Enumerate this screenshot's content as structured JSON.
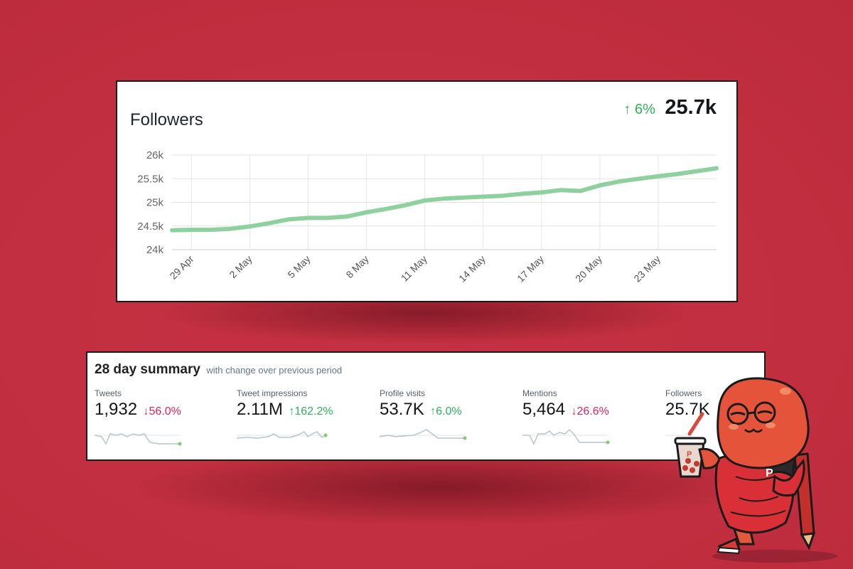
{
  "followers_card": {
    "title": "Followers",
    "change_arrow": "↑",
    "change": "6%",
    "value": "25.7k",
    "line_color": "#8fd19e",
    "up_color": "#2eb15b"
  },
  "chart_data": {
    "type": "line",
    "title": "Followers",
    "x_tick_labels": [
      "29 Apr",
      "2 May",
      "5 May",
      "8 May",
      "11 May",
      "14 May",
      "17 May",
      "20 May",
      "23 May"
    ],
    "y_tick_labels": [
      "24k",
      "24.5k",
      "25k",
      "25.5k",
      "26k"
    ],
    "ylim": [
      24000,
      26000
    ],
    "grid": true,
    "series": [
      {
        "x": [
          "2019-04-28",
          "2019-04-29",
          "2019-04-30",
          "2019-05-01",
          "2019-05-02",
          "2019-05-03",
          "2019-05-04",
          "2019-05-05",
          "2019-05-06",
          "2019-05-07",
          "2019-05-08",
          "2019-05-09",
          "2019-05-10",
          "2019-05-11",
          "2019-05-12",
          "2019-05-13",
          "2019-05-14",
          "2019-05-15",
          "2019-05-16",
          "2019-05-17",
          "2019-05-18",
          "2019-05-19",
          "2019-05-20",
          "2019-05-21",
          "2019-05-22",
          "2019-05-23",
          "2019-05-24",
          "2019-05-25",
          "2019-05-26"
        ],
        "values": [
          24410,
          24420,
          24420,
          24440,
          24490,
          24560,
          24640,
          24670,
          24670,
          24700,
          24790,
          24860,
          24940,
          25040,
          25080,
          25100,
          25120,
          25140,
          25180,
          25210,
          25260,
          25240,
          25360,
          25440,
          25500,
          25550,
          25600,
          25660,
          25720
        ]
      }
    ]
  },
  "summary": {
    "title": "28 day summary",
    "subtitle": "with change over previous period",
    "metrics": [
      {
        "label": "Tweets",
        "value": "1,932",
        "arrow": "↓",
        "change": "56.0%",
        "direction": "down"
      },
      {
        "label": "Tweet impressions",
        "value": "2.11M",
        "arrow": "↑",
        "change": "162.2%",
        "direction": "up"
      },
      {
        "label": "Profile visits",
        "value": "53.7K",
        "arrow": "↑",
        "change": "6.0%",
        "direction": "up"
      },
      {
        "label": "Mentions",
        "value": "5,464",
        "arrow": "↓",
        "change": "26.6%",
        "direction": "down"
      },
      {
        "label": "Followers",
        "value": "25.7K",
        "arrow": "",
        "change": "",
        "direction": "up"
      }
    ],
    "sparkline_color": "#b7c4cf",
    "sparkline_end_color": "#7fcc6e",
    "down_color": "#e0245e"
  },
  "mascot": {
    "icon": "mascot-character-icon",
    "cup_label": "P",
    "hoodie_label": "P"
  }
}
